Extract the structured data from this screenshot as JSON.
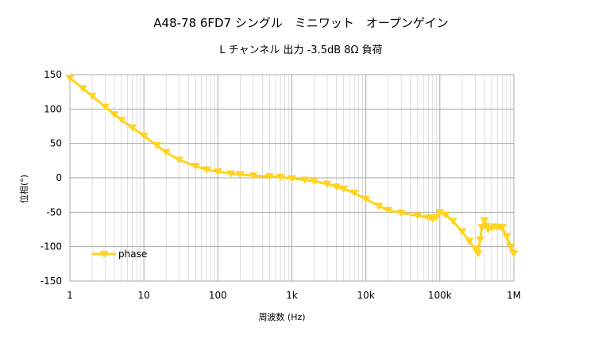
{
  "chart_data": {
    "type": "line",
    "title": "A48-78 6FD7 シングル　ミニワット　オープンゲイン",
    "subtitle": "L チャンネル 出力 -3.5dB 8Ω 負荷",
    "xlabel": "周波数 (Hz)",
    "ylabel": "位相(°)",
    "xscale": "log",
    "xlim": [
      1,
      1000000
    ],
    "ylim": [
      -150,
      150
    ],
    "x_tick_values": [
      1,
      10,
      100,
      1000,
      10000,
      100000,
      1000000
    ],
    "x_tick_labels": [
      "1",
      "10",
      "100",
      "1k",
      "10k",
      "100k",
      "1M"
    ],
    "y_tick_values": [
      150,
      100,
      50,
      0,
      -50,
      -100,
      -150
    ],
    "y_tick_labels": [
      "150",
      "100",
      "50",
      "0",
      "-50",
      "-100",
      "-150"
    ],
    "grid": true,
    "legend_position": "bottom-left",
    "series": [
      {
        "name": "phase",
        "color": "#FFD320",
        "marker": "triangle-down",
        "x": [
          1,
          1.5,
          2,
          3,
          4,
          5,
          7,
          10,
          15,
          20,
          30,
          50,
          70,
          100,
          150,
          200,
          300,
          500,
          700,
          1000,
          1500,
          2000,
          3000,
          4000,
          5000,
          7000,
          10000,
          15000,
          20000,
          30000,
          50000,
          70000,
          80000,
          90000,
          100000,
          120000,
          150000,
          200000,
          250000,
          300000,
          330000,
          350000,
          370000,
          400000,
          420000,
          450000,
          500000,
          550000,
          600000,
          650000,
          700000,
          800000,
          900000,
          1000000
        ],
        "y": [
          145,
          130,
          119,
          103,
          92,
          84,
          73,
          61,
          47,
          37,
          26,
          17,
          12,
          9,
          6,
          5,
          3,
          2,
          1,
          -1,
          -3,
          -5,
          -9,
          -13,
          -16,
          -22,
          -31,
          -41,
          -47,
          -51,
          -55,
          -58,
          -60,
          -57,
          -50,
          -54,
          -63,
          -78,
          -92,
          -103,
          -110,
          -90,
          -72,
          -62,
          -70,
          -75,
          -73,
          -71,
          -72,
          -72,
          -72,
          -85,
          -100,
          -110
        ]
      }
    ]
  }
}
